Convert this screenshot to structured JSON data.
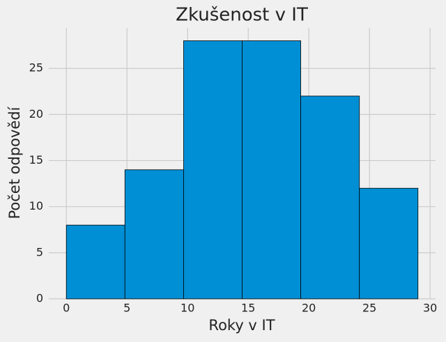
{
  "chart_data": {
    "type": "histogram",
    "title": "Zkušenost v IT",
    "x_label": "Roky v IT",
    "y_label": "Počet odpovědí",
    "bins": [
      0,
      4.83,
      9.67,
      14.5,
      19.33,
      24.17,
      29
    ],
    "values": [
      8,
      14,
      28,
      28,
      22,
      12
    ],
    "color": "#008fd5",
    "edge_color": "#000000",
    "xlim": [
      -1.45,
      30.45
    ],
    "xticks": [
      0,
      5,
      10,
      15,
      20,
      25,
      30
    ],
    "ylim": [
      0,
      29.4
    ],
    "yticks": [
      0,
      5,
      10,
      15,
      20,
      25
    ],
    "grid": true
  }
}
